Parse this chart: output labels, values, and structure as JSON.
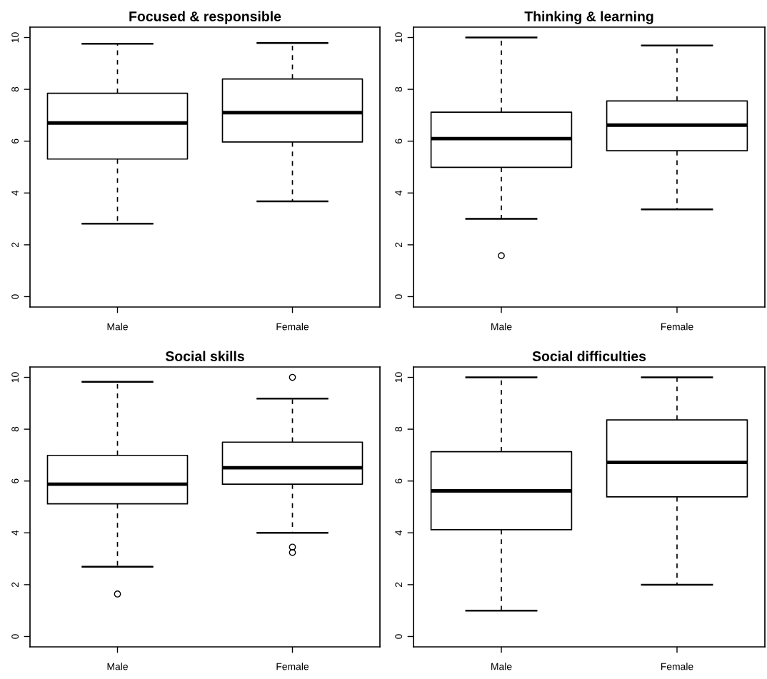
{
  "chart_data": [
    {
      "type": "box",
      "title": "Focused & responsible",
      "categories": [
        "Male",
        "Female"
      ],
      "ylim": [
        -0.4,
        10.4
      ],
      "yticks": [
        0,
        2,
        4,
        6,
        8,
        10
      ],
      "grid": false,
      "legend": false,
      "boxes": [
        {
          "low": 2.82,
          "q1": 5.31,
          "median": 6.7,
          "q3": 7.85,
          "high": 9.76
        },
        {
          "low": 3.68,
          "q1": 5.97,
          "median": 7.1,
          "q3": 8.4,
          "high": 9.79
        }
      ]
    },
    {
      "type": "box",
      "title": "Thinking & learning",
      "categories": [
        "Male",
        "Female"
      ],
      "ylim": [
        -0.4,
        10.4
      ],
      "yticks": [
        0,
        2,
        4,
        6,
        8,
        10
      ],
      "grid": false,
      "legend": false,
      "boxes": [
        {
          "low": 3.0,
          "q1": 4.99,
          "median": 6.1,
          "q3": 7.12,
          "high": 10.0,
          "outliers": [
            1.58
          ]
        },
        {
          "low": 3.37,
          "q1": 5.63,
          "median": 6.62,
          "q3": 7.55,
          "high": 9.69
        }
      ]
    },
    {
      "type": "box",
      "title": "Social skills",
      "categories": [
        "Male",
        "Female"
      ],
      "ylim": [
        -0.4,
        10.4
      ],
      "yticks": [
        0,
        2,
        4,
        6,
        8,
        10
      ],
      "grid": false,
      "legend": false,
      "boxes": [
        {
          "low": 2.69,
          "q1": 5.12,
          "median": 5.88,
          "q3": 6.99,
          "high": 9.83,
          "outliers": [
            1.64
          ]
        },
        {
          "low": 4.0,
          "q1": 5.88,
          "median": 6.51,
          "q3": 7.5,
          "high": 9.18,
          "outliers": [
            10.0,
            3.45,
            3.24
          ]
        }
      ]
    },
    {
      "type": "box",
      "title": "Social difficulties",
      "categories": [
        "Male",
        "Female"
      ],
      "ylim": [
        -0.4,
        10.4
      ],
      "yticks": [
        0,
        2,
        4,
        6,
        8,
        10
      ],
      "grid": false,
      "legend": false,
      "boxes": [
        {
          "low": 1.0,
          "q1": 4.12,
          "median": 5.62,
          "q3": 7.13,
          "high": 10.0
        },
        {
          "low": 2.0,
          "q1": 5.39,
          "median": 6.72,
          "q3": 8.36,
          "high": 10.0
        }
      ]
    }
  ]
}
